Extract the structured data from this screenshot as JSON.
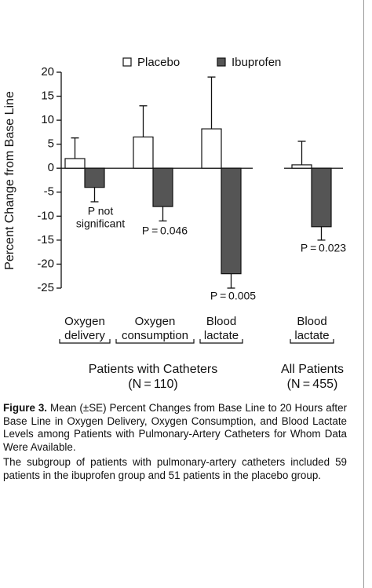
{
  "chart_data": {
    "type": "bar",
    "y_label": "Percent Change from Base Line",
    "categories": [
      [
        "Oxygen",
        "delivery"
      ],
      [
        "Oxygen",
        "consumption"
      ],
      [
        "Blood",
        "lactate"
      ],
      [
        "Blood",
        "lactate"
      ]
    ],
    "groups": [
      [
        "Patients with Catheters",
        "(N = 110)"
      ],
      [
        "All Patients",
        "(N = 455)"
      ]
    ],
    "series": [
      {
        "name": "Placebo",
        "color": "#ffffff",
        "values": [
          2,
          6.5,
          8.2,
          0.7
        ],
        "errors": [
          4.3,
          6.5,
          10.8,
          4.9
        ]
      },
      {
        "name": "Ibuprofen",
        "color": "#555555",
        "values": [
          -4,
          -8,
          -22,
          -12.2
        ],
        "errors": [
          3,
          3,
          3,
          2.8
        ]
      }
    ],
    "annotations": [
      [
        "P not",
        "significant"
      ],
      [
        "P = 0.046"
      ],
      [
        "P = 0.005"
      ],
      [
        "P = 0.023"
      ]
    ],
    "ylim": [
      -25,
      20
    ],
    "yticks": [
      20,
      15,
      10,
      5,
      0,
      -5,
      -10,
      -15,
      -20,
      -25
    ]
  },
  "caption": {
    "label": "Figure 3.",
    "text": "Mean (±SE) Percent Changes from Base Line to 20 Hours after Base Line in Oxygen Delivery, Oxygen Consumption, and Blood Lactate Levels among Patients with Pulmonary-Artery Catheters for Whom Data Were Available.",
    "note": "The subgroup of patients with pulmonary-artery catheters included 59 patients in the ibuprofen group and 51 patients in the placebo group."
  }
}
